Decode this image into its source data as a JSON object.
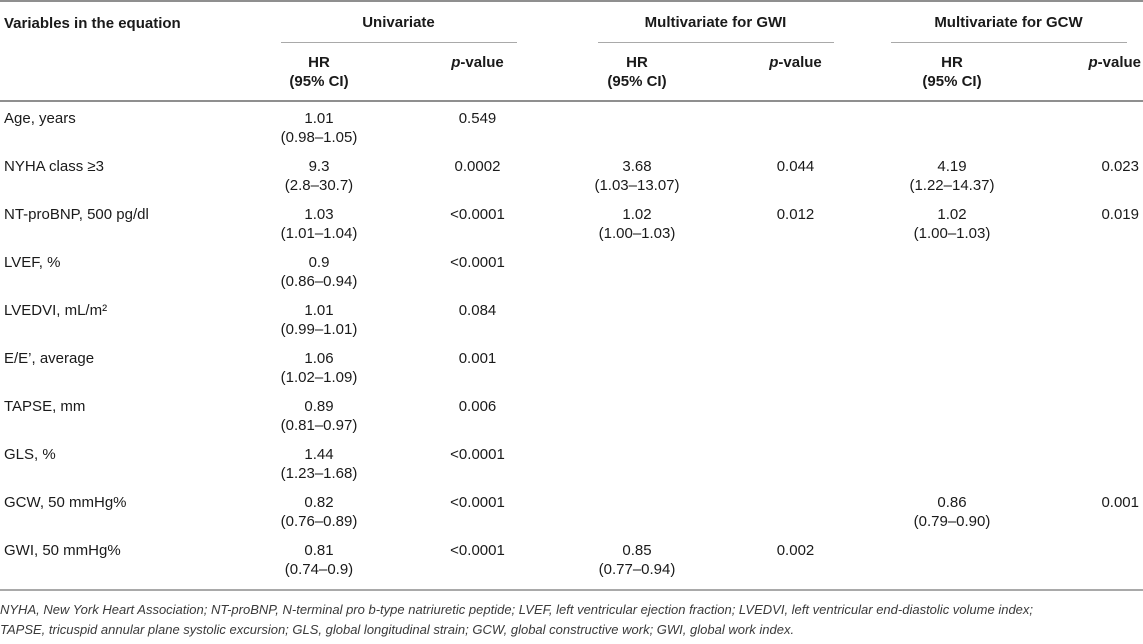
{
  "title_col": "Variables in the equation",
  "groups": [
    "Univariate",
    "Multivariate for GWI",
    "Multivariate for GCW"
  ],
  "subheader": {
    "hr": "HR",
    "ci": "(95% CI)",
    "p_prefix": "p",
    "p_suffix": "-value"
  },
  "rows": [
    {
      "label": "Age, years",
      "uni_hr": "1.01",
      "uni_ci": "(0.98–1.05)",
      "uni_p": "0.549",
      "gwi_hr": "",
      "gwi_ci": "",
      "gwi_p": "",
      "gcw_hr": "",
      "gcw_ci": "",
      "gcw_p": ""
    },
    {
      "label": "NYHA class ≥3",
      "uni_hr": "9.3",
      "uni_ci": "(2.8–30.7)",
      "uni_p": "0.0002",
      "gwi_hr": "3.68",
      "gwi_ci": "(1.03–13.07)",
      "gwi_p": "0.044",
      "gcw_hr": "4.19",
      "gcw_ci": "(1.22–14.37)",
      "gcw_p": "0.023"
    },
    {
      "label": "NT-proBNP, 500 pg/dl",
      "uni_hr": "1.03",
      "uni_ci": "(1.01–1.04)",
      "uni_p": "<0.0001",
      "gwi_hr": "1.02",
      "gwi_ci": "(1.00–1.03)",
      "gwi_p": "0.012",
      "gcw_hr": "1.02",
      "gcw_ci": "(1.00–1.03)",
      "gcw_p": "0.019"
    },
    {
      "label": "LVEF, %",
      "uni_hr": "0.9",
      "uni_ci": "(0.86–0.94)",
      "uni_p": "<0.0001",
      "gwi_hr": "",
      "gwi_ci": "",
      "gwi_p": "",
      "gcw_hr": "",
      "gcw_ci": "",
      "gcw_p": ""
    },
    {
      "label": "LVEDVI, mL/m²",
      "uni_hr": "1.01",
      "uni_ci": "(0.99–1.01)",
      "uni_p": "0.084",
      "gwi_hr": "",
      "gwi_ci": "",
      "gwi_p": "",
      "gcw_hr": "",
      "gcw_ci": "",
      "gcw_p": ""
    },
    {
      "label": "E/E’, average",
      "uni_hr": "1.06",
      "uni_ci": "(1.02–1.09)",
      "uni_p": "0.001",
      "gwi_hr": "",
      "gwi_ci": "",
      "gwi_p": "",
      "gcw_hr": "",
      "gcw_ci": "",
      "gcw_p": ""
    },
    {
      "label": "TAPSE, mm",
      "uni_hr": "0.89",
      "uni_ci": "(0.81–0.97)",
      "uni_p": "0.006",
      "gwi_hr": "",
      "gwi_ci": "",
      "gwi_p": "",
      "gcw_hr": "",
      "gcw_ci": "",
      "gcw_p": ""
    },
    {
      "label": "GLS, %",
      "uni_hr": "1.44",
      "uni_ci": "(1.23–1.68)",
      "uni_p": "<0.0001",
      "gwi_hr": "",
      "gwi_ci": "",
      "gwi_p": "",
      "gcw_hr": "",
      "gcw_ci": "",
      "gcw_p": ""
    },
    {
      "label": "GCW, 50 mmHg%",
      "uni_hr": "0.82",
      "uni_ci": "(0.76–0.89)",
      "uni_p": "<0.0001",
      "gwi_hr": "",
      "gwi_ci": "",
      "gwi_p": "",
      "gcw_hr": "0.86",
      "gcw_ci": "(0.79–0.90)",
      "gcw_p": "0.001"
    },
    {
      "label": "GWI, 50 mmHg%",
      "uni_hr": "0.81",
      "uni_ci": "(0.74–0.9)",
      "uni_p": "<0.0001",
      "gwi_hr": "0.85",
      "gwi_ci": "(0.77–0.94)",
      "gwi_p": "0.002",
      "gcw_hr": "",
      "gcw_ci": "",
      "gcw_p": ""
    }
  ],
  "footnote": {
    "line1": "NYHA, New York Heart Association; NT-proBNP, N-terminal pro b-type natriuretic peptide; LVEF, left ventricular ejection fraction; LVEDVI, left ventricular end-diastolic volume index;",
    "line2": "TAPSE, tricuspid annular plane systolic excursion; GLS, global longitudinal strain; GCW, global constructive work; GWI, global work index."
  },
  "colors": {
    "text": "#1a1a1a",
    "rule_dark": "#8f8f8f",
    "rule_light": "#a9a9a9",
    "footnote_text": "#3a3a3a",
    "background": "#ffffff"
  }
}
